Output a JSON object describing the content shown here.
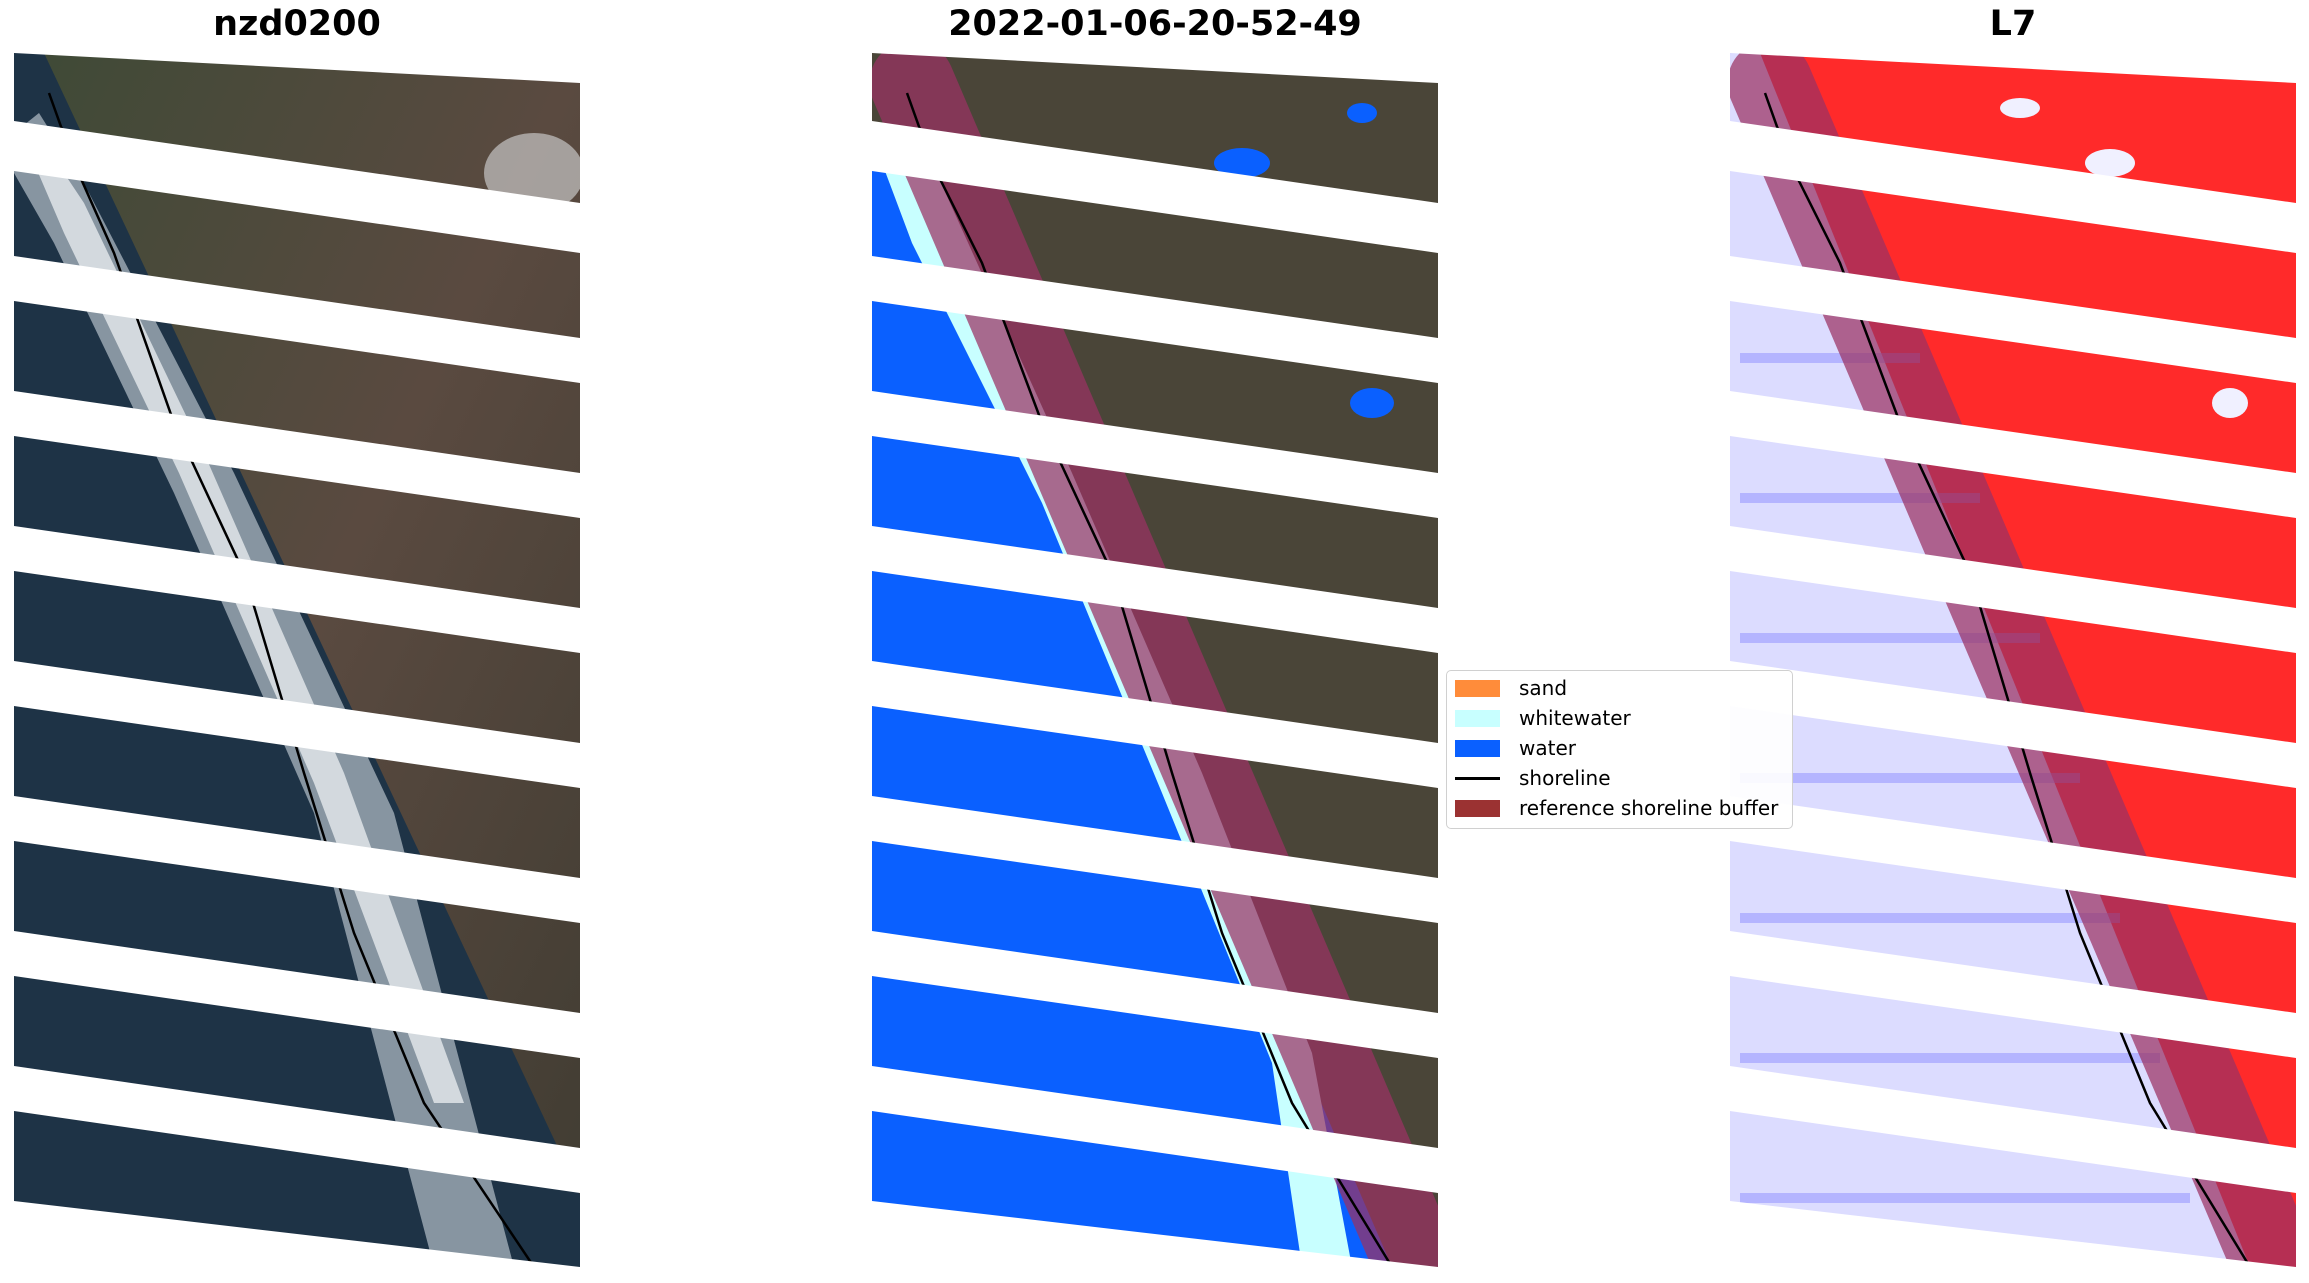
{
  "panels": [
    {
      "title": "nzd0200",
      "mode": "rgb"
    },
    {
      "title": "2022-01-06-20-52-49",
      "mode": "classified"
    },
    {
      "title": "L7",
      "mode": "index"
    }
  ],
  "legend": {
    "items": [
      {
        "label": "sand",
        "color": "#ff8c3a",
        "type": "patch"
      },
      {
        "label": "whitewater",
        "color": "#c8ffff",
        "type": "patch"
      },
      {
        "label": "water",
        "color": "#0a60ff",
        "type": "patch"
      },
      {
        "label": "shoreline",
        "color": "#000000",
        "type": "line"
      },
      {
        "label": "reference shoreline buffer",
        "color": "#9b3232",
        "type": "patch"
      }
    ]
  },
  "colors": {
    "land": "#4a4338",
    "ocean": "#1f3447",
    "surf": "#e6eaee",
    "water_class": "#0a60ff",
    "whitewater_class": "#c8ffff",
    "index_land": "#ff2222",
    "index_water": "#dcdcff",
    "buffer": "#9b3264",
    "nodata_stripes": "#ffffff"
  }
}
